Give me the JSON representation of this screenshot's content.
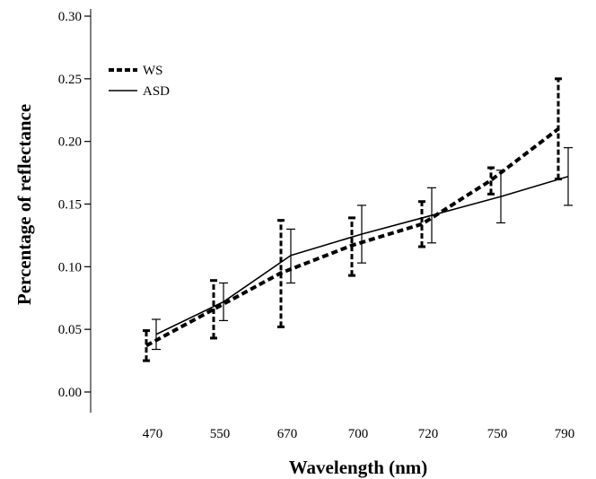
{
  "chart_data": {
    "type": "line",
    "title": "",
    "xlabel": "Wavelength (nm)",
    "ylabel": "Percentage of reflectance",
    "categories": [
      "470",
      "550",
      "670",
      "700",
      "720",
      "750",
      "790"
    ],
    "ylim": [
      0,
      0.3
    ],
    "yticks": [
      "0.00",
      "0.05",
      "0.10",
      "0.15",
      "0.20",
      "0.25",
      "0.30"
    ],
    "grid": false,
    "legend_position": "top-left",
    "series": [
      {
        "name": "WS",
        "style": "dashed",
        "color": "#000000",
        "values": [
          0.037,
          0.066,
          0.095,
          0.117,
          0.134,
          0.169,
          0.21
        ],
        "err_low": [
          0.025,
          0.043,
          0.052,
          0.093,
          0.116,
          0.158,
          0.17
        ],
        "err_high": [
          0.049,
          0.089,
          0.137,
          0.139,
          0.152,
          0.179,
          0.25
        ]
      },
      {
        "name": "ASD",
        "style": "solid",
        "color": "#000000",
        "values": [
          0.046,
          0.072,
          0.109,
          0.126,
          0.141,
          0.156,
          0.172
        ],
        "err_low": [
          0.034,
          0.057,
          0.087,
          0.103,
          0.119,
          0.135,
          0.149
        ],
        "err_high": [
          0.058,
          0.087,
          0.13,
          0.149,
          0.163,
          0.177,
          0.195
        ]
      }
    ]
  }
}
